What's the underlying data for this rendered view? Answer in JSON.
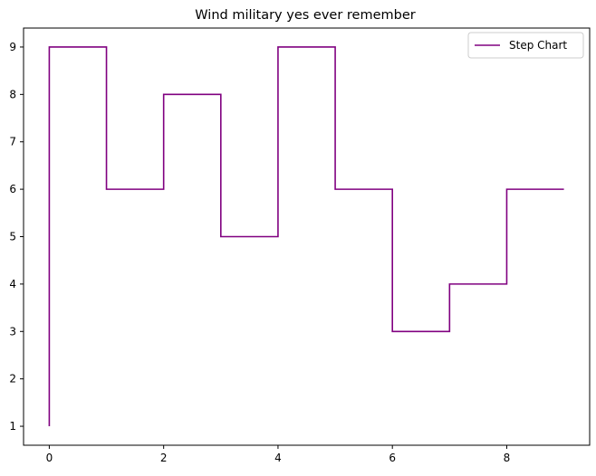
{
  "chart_data": {
    "type": "line",
    "step": "post",
    "title": "Wind military yes ever remember",
    "xlabel": "",
    "ylabel": "",
    "x": [
      0,
      1,
      2,
      3,
      4,
      5,
      6,
      7,
      8,
      9
    ],
    "series": [
      {
        "name": "Step Chart",
        "values": [
          9,
          6,
          8,
          5,
          9,
          6,
          3,
          4,
          6,
          6
        ],
        "color": "#800080"
      }
    ],
    "start_point": {
      "x": 0,
      "y": 1
    },
    "xlim": [
      -0.45,
      9.45
    ],
    "ylim": [
      0.6,
      9.4
    ],
    "xticks": [
      0,
      2,
      4,
      6,
      8
    ],
    "yticks": [
      1,
      2,
      3,
      4,
      5,
      6,
      7,
      8,
      9
    ],
    "grid": false,
    "legend_position": "upper right"
  }
}
